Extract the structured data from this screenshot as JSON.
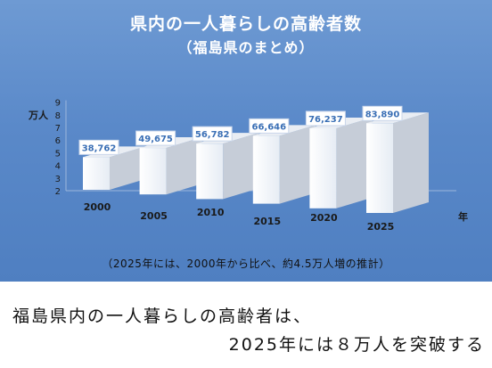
{
  "chart_data": {
    "type": "bar",
    "title": "県内の一人暮らしの高齢者数",
    "subtitle": "（福島県のまとめ）",
    "categories": [
      "2000",
      "2005",
      "2010",
      "2015",
      "2020",
      "2025"
    ],
    "values": [
      38762,
      49675,
      56782,
      66646,
      76237,
      83890
    ],
    "data_labels": [
      "38,762",
      "49,675",
      "56,782",
      "66,646",
      "76,237",
      "83,890"
    ],
    "ylabel": "万人",
    "xlabel": "年",
    "y_ticks": [
      "2",
      "3",
      "4",
      "5",
      "6",
      "7",
      "8",
      "9"
    ],
    "ylim": [
      2,
      9
    ],
    "note": "（2025年には、2000年から比べ、約4.5万人増の推計）",
    "legend": "none",
    "grid": false,
    "colors": {
      "panel": "#5a89c9",
      "bar_front": "#f4f7fb",
      "bar_side": "#c6cdd8",
      "label_text": "#3a6fb5"
    }
  },
  "caption": {
    "line1": "福島県内の一人暮らしの高齢者は、",
    "line2": "2025年には８万人を突破する"
  }
}
